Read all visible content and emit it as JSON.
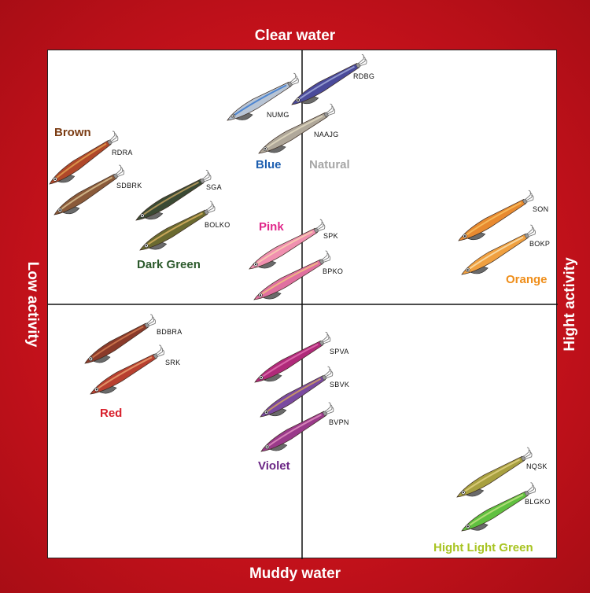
{
  "axes": {
    "top": "Clear water",
    "bottom": "Muddy water",
    "left": "Low activity",
    "right": "Hight activity"
  },
  "groups": [
    {
      "key": "brown",
      "label": "Brown",
      "color": "#7a3b12"
    },
    {
      "key": "darkgreen",
      "label": "Dark Green",
      "color": "#2c5a2c"
    },
    {
      "key": "blue",
      "label": "Blue",
      "color": "#1e5fb0"
    },
    {
      "key": "natural",
      "label": "Natural",
      "color": "#a6a6a6"
    },
    {
      "key": "pink",
      "label": "Pink",
      "color": "#e0278a"
    },
    {
      "key": "orange",
      "label": "Orange",
      "color": "#ef8e1a"
    },
    {
      "key": "red",
      "label": "Red",
      "color": "#d8202c"
    },
    {
      "key": "violet",
      "label": "Violet",
      "color": "#6a2585"
    },
    {
      "key": "lightgreen",
      "label": "Hight Light Green",
      "color": "#a8c422"
    }
  ],
  "lures": [
    {
      "code": "RDRA",
      "group": "brown",
      "body": "#b0482a",
      "stripe": "#e0a050"
    },
    {
      "code": "SDBRK",
      "group": "brown",
      "body": "#8a5a3a",
      "stripe": "#d8c090"
    },
    {
      "code": "SGA",
      "group": "darkgreen",
      "body": "#3a4a34",
      "stripe": "#c0a060"
    },
    {
      "code": "BOLKO",
      "group": "darkgreen",
      "body": "#6a6a30",
      "stripe": "#d8b060"
    },
    {
      "code": "NUMG",
      "group": "blue",
      "body": "#b8c4d4",
      "stripe": "#3a7ad0"
    },
    {
      "code": "RDBG",
      "group": "blue",
      "body": "#4a4a9a",
      "stripe": "#a0a8d8"
    },
    {
      "code": "NAAJG",
      "group": "natural",
      "body": "#b0a89a",
      "stripe": "#e0d8c0"
    },
    {
      "code": "SPK",
      "group": "pink",
      "body": "#f090b0",
      "stripe": "#f8d0b0"
    },
    {
      "code": "BPKO",
      "group": "pink",
      "body": "#e070a0",
      "stripe": "#f0c080"
    },
    {
      "code": "SON",
      "group": "orange",
      "body": "#e88a30",
      "stripe": "#f8c060"
    },
    {
      "code": "BOKP",
      "group": "orange",
      "body": "#f0a040",
      "stripe": "#f8e0b0"
    },
    {
      "code": "BDBRA",
      "group": "red",
      "body": "#8a3a2a",
      "stripe": "#d07a50"
    },
    {
      "code": "SRK",
      "group": "red",
      "body": "#b84030",
      "stripe": "#e8a070"
    },
    {
      "code": "SPVA",
      "group": "violet",
      "body": "#b02a7a",
      "stripe": "#e070b0"
    },
    {
      "code": "SBVK",
      "group": "violet",
      "body": "#7a4aa0",
      "stripe": "#d0a060"
    },
    {
      "code": "BVPN",
      "group": "violet",
      "body": "#9a3a8a",
      "stripe": "#e090c0"
    },
    {
      "code": "NQSK",
      "group": "lightgreen",
      "body": "#a8a040",
      "stripe": "#e0d080"
    },
    {
      "code": "BLGKO",
      "group": "lightgreen",
      "body": "#60c040",
      "stripe": "#c0e080"
    }
  ]
}
